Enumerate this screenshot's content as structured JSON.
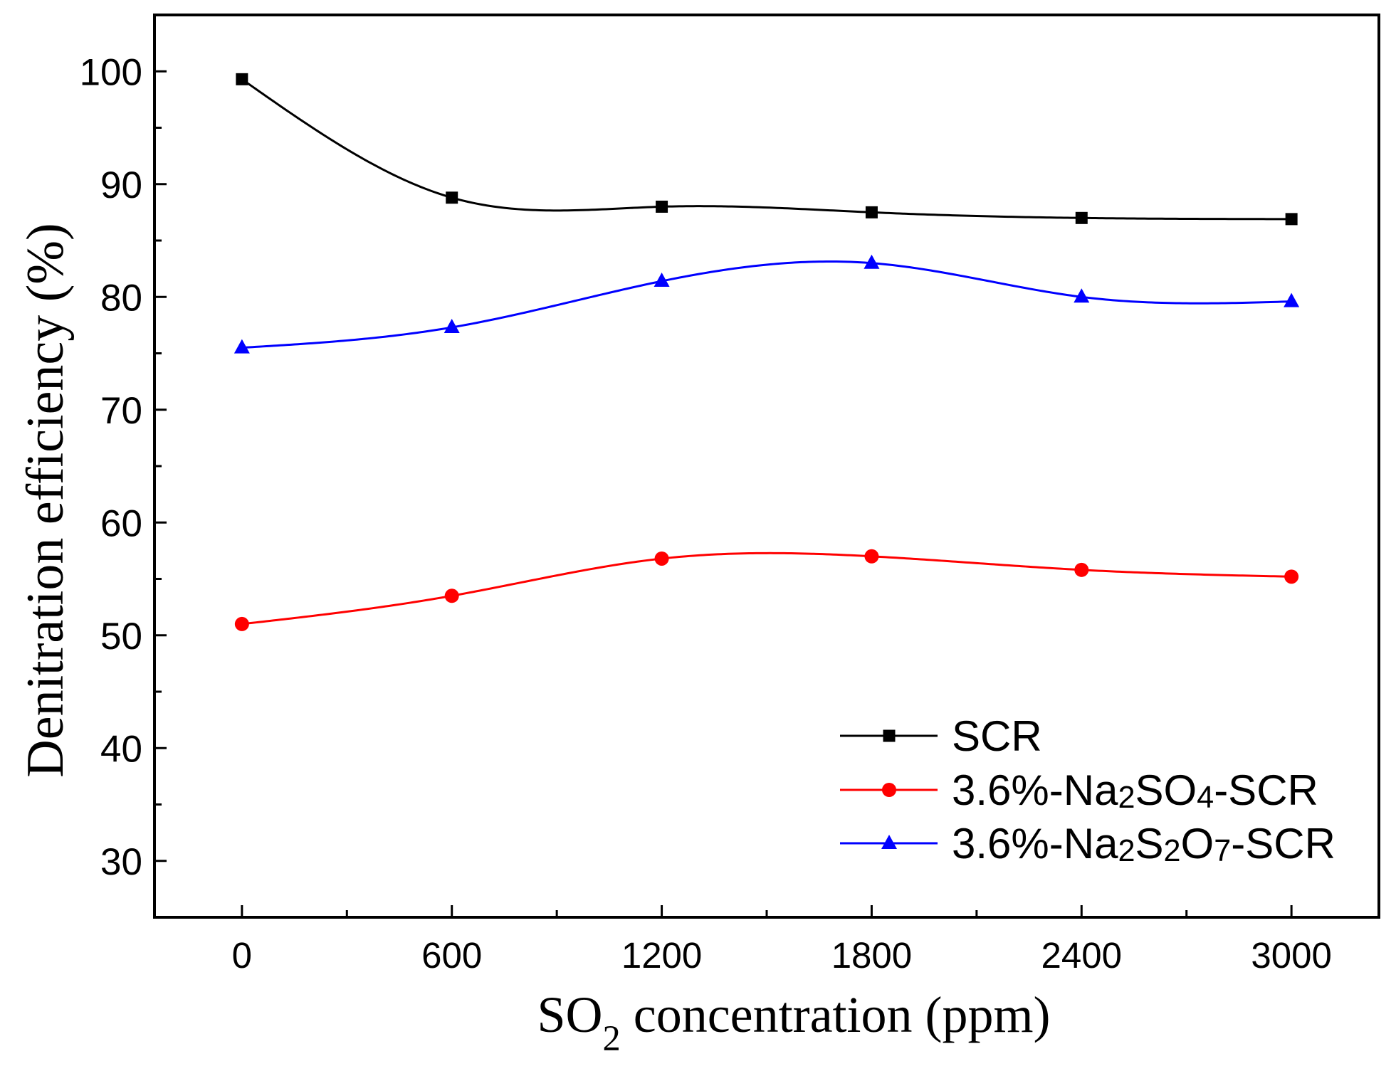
{
  "chart_data": {
    "type": "line",
    "xlabel": "SO2 concentration (ppm)",
    "ylabel": "Denitration efficiency (%)",
    "x": [
      0,
      600,
      1200,
      1800,
      2400,
      3000
    ],
    "xlim": [
      -250,
      3250
    ],
    "ylim": [
      25,
      105
    ],
    "xticks": [
      0,
      600,
      1200,
      1800,
      2400,
      3000
    ],
    "xminor": [
      300,
      900,
      1500,
      2100,
      2700
    ],
    "yticks": [
      30,
      40,
      50,
      60,
      70,
      80,
      90,
      100
    ],
    "yminor": [
      35,
      45,
      55,
      65,
      75,
      85,
      95
    ],
    "grid": false,
    "legend": "bottom-right",
    "series": [
      {
        "name": "SCR",
        "color": "#000000",
        "marker": "square",
        "values": [
          99.3,
          88.8,
          88.0,
          87.5,
          87.0,
          86.9
        ]
      },
      {
        "name": "3.6%-Na2SO4-SCR",
        "color": "#ff0000",
        "marker": "circle",
        "values": [
          51.0,
          53.5,
          56.8,
          57.0,
          55.8,
          55.2
        ]
      },
      {
        "name": "3.6%-Na2S2O7-SCR",
        "color": "#0000ff",
        "marker": "triangle",
        "values": [
          75.5,
          77.3,
          81.4,
          83.0,
          80.0,
          79.6
        ]
      }
    ]
  }
}
